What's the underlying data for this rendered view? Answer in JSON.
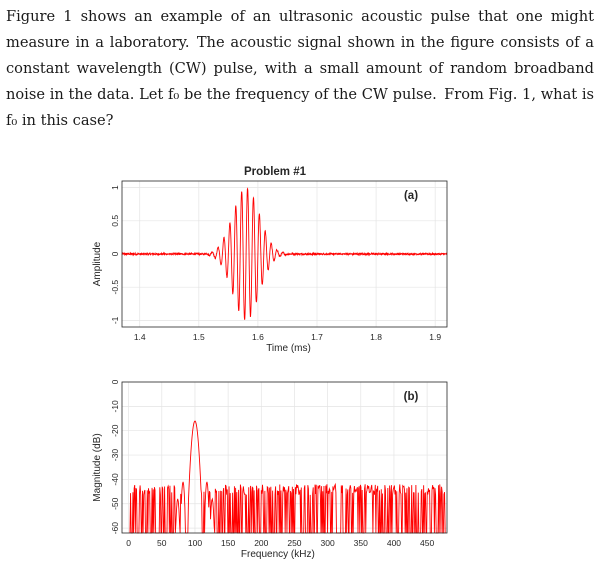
{
  "question": {
    "sentence_1": "Figure 1 shows an example of an ultrasonic acoustic pulse that one might measure in a laboratory.",
    "sentence_2": "The acoustic signal shown in the figure consists of a constant wavelength (CW) pulse, with a small amount of random broadband noise in the data.",
    "sentence_3": "Let f₀ be the frequency of the CW pulse.",
    "sentence_4": "From Fig. 1, what is f₀ in this case?"
  },
  "chart_data": [
    {
      "type": "line",
      "title": "Problem #1",
      "panel_label": "(a)",
      "xlabel": "Time (ms)",
      "ylabel": "Amplitude",
      "xlim": [
        1.37,
        1.92
      ],
      "ylim": [
        -1.1,
        1.1
      ],
      "xticks": [
        "1.4",
        "1.5",
        "1.6",
        "1.7",
        "1.8",
        "1.9"
      ],
      "yticks": [
        "1",
        "0.5",
        "0",
        "-0.5",
        "-1"
      ],
      "grid": true,
      "color": "#ff0000",
      "signal": {
        "carrier_frequency_kHz": 100,
        "pulse_center_ms": 1.58,
        "pulse_start_ms": 1.52,
        "pulse_end_ms": 1.64,
        "peak_amplitude": 1.0
      }
    },
    {
      "type": "line",
      "panel_label": "(b)",
      "xlabel": "Frequency (kHz)",
      "ylabel": "Magnitude (dB)",
      "xlim": [
        -10,
        480
      ],
      "ylim": [
        -62,
        0
      ],
      "xticks": [
        "0",
        "50",
        "100",
        "150",
        "200",
        "250",
        "300",
        "350",
        "400",
        "450"
      ],
      "yticks": [
        "0",
        "-10",
        "-20",
        "-30",
        "-40",
        "-50",
        "-60"
      ],
      "grid": true,
      "color": "#ff0000",
      "spectrum": {
        "main_peak": {
          "x": 100,
          "y": -16
        },
        "side_lobes": [
          {
            "x": 82,
            "y": -41
          },
          {
            "x": 118,
            "y": -41
          },
          {
            "x": 74,
            "y": -48
          },
          {
            "x": 126,
            "y": -48
          }
        ],
        "noise_floor_dB": [
          -50,
          -42
        ]
      }
    }
  ]
}
